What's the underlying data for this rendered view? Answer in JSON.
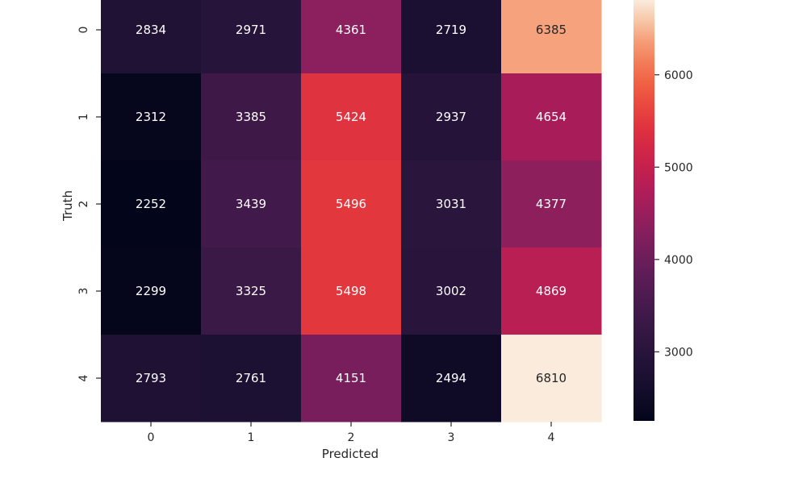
{
  "chart_data": {
    "type": "heatmap",
    "title": "",
    "xlabel": "Predicted",
    "ylabel": "Truth",
    "x_categories": [
      "0",
      "1",
      "2",
      "3",
      "4"
    ],
    "y_categories": [
      "0",
      "1",
      "2",
      "3",
      "4"
    ],
    "values": [
      [
        2834,
        2971,
        4361,
        2719,
        6385
      ],
      [
        2312,
        3385,
        5424,
        2937,
        4654
      ],
      [
        2252,
        3439,
        5496,
        3031,
        4377
      ],
      [
        2299,
        3325,
        5498,
        3002,
        4869
      ],
      [
        2793,
        2761,
        4151,
        2494,
        6810
      ]
    ],
    "colormap": "rocket",
    "color_range": [
      2252,
      6810
    ],
    "colorbar_ticks": [
      "3000",
      "4000",
      "5000",
      "6000"
    ],
    "colorbar_tick_values": [
      3000,
      4000,
      5000,
      6000
    ],
    "annotation_colors": {
      "dark_cell_text": "#ffffff",
      "light_cell_text": "#262626"
    }
  }
}
